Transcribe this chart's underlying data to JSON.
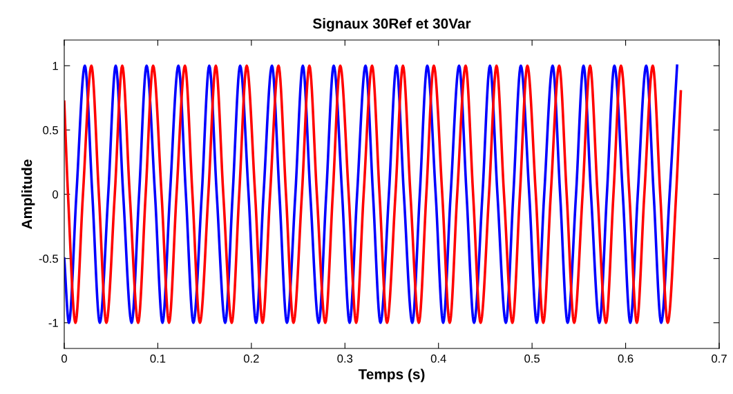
{
  "chart_data": {
    "type": "line",
    "title": "Signaux 30Ref et 30Var",
    "xlabel": "Temps (s)",
    "ylabel": "Amplitude",
    "xlim": [
      0,
      0.7
    ],
    "xticks": [
      0,
      0.1,
      0.2,
      0.3,
      0.4,
      0.5,
      0.6,
      0.7
    ],
    "ylim": [
      -1.2,
      1.2
    ],
    "yticks": [
      -1,
      -0.5,
      0,
      0.5,
      1
    ],
    "grid": false,
    "marker": "none",
    "line_style": "solid",
    "series": [
      {
        "color": "#0000ff",
        "x": [
          0,
          0.005,
          0.013,
          0.022,
          0.03,
          0.038,
          0.047,
          0.055,
          0.063,
          0.072,
          0.08,
          0.088,
          0.097,
          0.105,
          0.113,
          0.122,
          0.13,
          0.138,
          0.147,
          0.155,
          0.163,
          0.172,
          0.18,
          0.188,
          0.197,
          0.205,
          0.213,
          0.222,
          0.23,
          0.238,
          0.247,
          0.255,
          0.263,
          0.272,
          0.28,
          0.288,
          0.297,
          0.305,
          0.313,
          0.322,
          0.33,
          0.338,
          0.347,
          0.355,
          0.363,
          0.372,
          0.38,
          0.388,
          0.397,
          0.405,
          0.413,
          0.422,
          0.43,
          0.438,
          0.447,
          0.455,
          0.463,
          0.472,
          0.48,
          0.488,
          0.497,
          0.505,
          0.513,
          0.522,
          0.53,
          0.538,
          0.547,
          0.555,
          0.563,
          0.572,
          0.58,
          0.588,
          0.597,
          0.605,
          0.613,
          0.622,
          0.63,
          0.638,
          0.647,
          0.655
        ],
        "values": [
          -0.5,
          -1,
          0,
          1,
          0,
          -1,
          0,
          1,
          0,
          -1,
          0,
          1,
          0,
          -1,
          0,
          1,
          0,
          -1,
          0,
          1,
          0,
          -1,
          0,
          1,
          0,
          -1,
          0,
          1,
          0,
          -1,
          0,
          1,
          0,
          -1,
          0,
          1,
          0,
          -1,
          0,
          1,
          0,
          -1,
          0,
          1,
          0,
          -1,
          0,
          1,
          0,
          -1,
          0,
          1,
          0,
          -1,
          0,
          1,
          0,
          -1,
          0,
          1,
          0,
          -1,
          0,
          1,
          0,
          -1,
          0,
          1,
          0,
          -1,
          0,
          1,
          0,
          -1,
          0,
          1,
          0,
          -1,
          0,
          1
        ]
      },
      {
        "color": "#ff0000",
        "x": [
          0,
          0.004,
          0.012,
          0.02,
          0.029,
          0.037,
          0.045,
          0.054,
          0.062,
          0.07,
          0.079,
          0.087,
          0.095,
          0.104,
          0.112,
          0.12,
          0.129,
          0.137,
          0.145,
          0.154,
          0.162,
          0.17,
          0.179,
          0.187,
          0.195,
          0.204,
          0.212,
          0.22,
          0.229,
          0.237,
          0.245,
          0.254,
          0.262,
          0.27,
          0.279,
          0.287,
          0.295,
          0.304,
          0.312,
          0.32,
          0.329,
          0.337,
          0.345,
          0.354,
          0.362,
          0.37,
          0.379,
          0.387,
          0.395,
          0.404,
          0.412,
          0.42,
          0.429,
          0.437,
          0.445,
          0.454,
          0.462,
          0.47,
          0.479,
          0.487,
          0.495,
          0.504,
          0.512,
          0.52,
          0.529,
          0.537,
          0.545,
          0.554,
          0.562,
          0.57,
          0.579,
          0.587,
          0.595,
          0.604,
          0.612,
          0.62,
          0.629,
          0.637,
          0.645,
          0.654,
          0.659
        ],
        "values": [
          0.72,
          0,
          -1,
          0,
          1,
          0,
          -1,
          0,
          1,
          0,
          -1,
          0,
          1,
          0,
          -1,
          0,
          1,
          0,
          -1,
          0,
          1,
          0,
          -1,
          0,
          1,
          0,
          -1,
          0,
          1,
          0,
          -1,
          0,
          1,
          0,
          -1,
          0,
          1,
          0,
          -1,
          0,
          1,
          0,
          -1,
          0,
          1,
          0,
          -1,
          0,
          1,
          0,
          -1,
          0,
          1,
          0,
          -1,
          0,
          1,
          0,
          -1,
          0,
          1,
          0,
          -1,
          0,
          1,
          0,
          -1,
          0,
          1,
          0,
          -1,
          0,
          1,
          0,
          -1,
          0,
          1,
          0,
          -1,
          0,
          0.8
        ]
      }
    ]
  }
}
